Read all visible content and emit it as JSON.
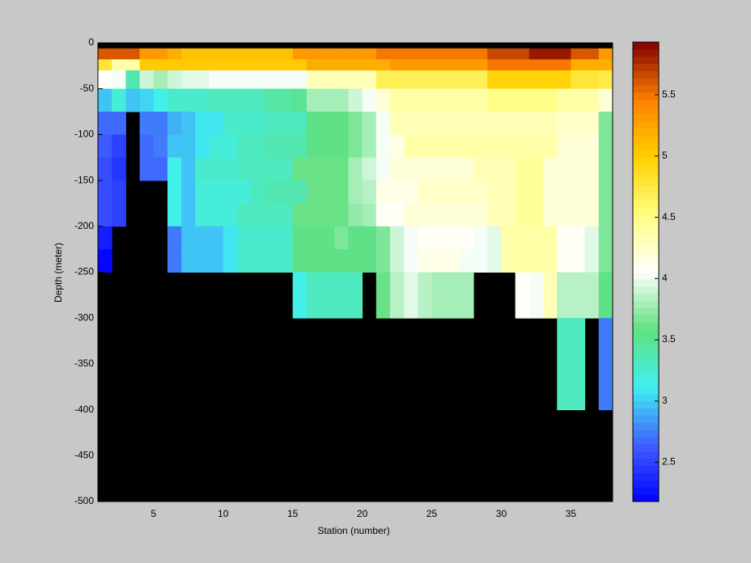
{
  "chart_data": {
    "type": "heatmap",
    "xlabel": "Station (number)",
    "ylabel": "Depth (meter)",
    "xlim": [
      1,
      38
    ],
    "xticks": [
      5,
      10,
      15,
      20,
      25,
      30,
      35
    ],
    "ylim": [
      -500,
      0
    ],
    "yticks": [
      0,
      -50,
      -100,
      -150,
      -200,
      -250,
      -300,
      -350,
      -400,
      -450,
      -500
    ],
    "x_edges": [
      1,
      2,
      3,
      4,
      5,
      6,
      7,
      8,
      9,
      10,
      11,
      12,
      13,
      14,
      15,
      16,
      17,
      18,
      19,
      20,
      21,
      22,
      23,
      24,
      25,
      26,
      27,
      28,
      29,
      30,
      31,
      32,
      33,
      34,
      35,
      36,
      37,
      38
    ],
    "y_edges": [
      -6,
      -18,
      -30,
      -50,
      -75,
      -100,
      -125,
      -150,
      -175,
      -200,
      -225,
      -250,
      -300,
      -400
    ],
    "clim": [
      2.18,
      5.93
    ],
    "cticks": [
      2.5,
      3,
      3.5,
      4,
      4.5,
      5,
      5.5
    ],
    "colormap": [
      "#0000ff",
      "#4060ff",
      "#40f0f0",
      "#60e080",
      "#ffffff",
      "#ffff80",
      "#ffd000",
      "#ff8000",
      "#800000"
    ],
    "background": "#000000",
    "values": [
      [
        5.6,
        5.6,
        5.6,
        5.3,
        5.3,
        5.2,
        5.1,
        5.1,
        5.1,
        5.1,
        5.1,
        5.1,
        5.1,
        5.1,
        5.3,
        5.3,
        5.3,
        5.3,
        5.3,
        5.3,
        5.5,
        5.5,
        5.5,
        5.5,
        5.5,
        5.5,
        5.5,
        5.5,
        5.65,
        5.65,
        5.65,
        5.85,
        5.85,
        5.85,
        5.6,
        5.6,
        5.3
      ],
      [
        4.8,
        4.4,
        4.4,
        5.0,
        5.0,
        5.0,
        5.0,
        5.0,
        5.0,
        5.0,
        5.0,
        5.0,
        5.0,
        5.0,
        5.0,
        5.2,
        5.2,
        5.2,
        5.2,
        5.2,
        5.2,
        5.3,
        5.3,
        5.3,
        5.3,
        5.3,
        5.3,
        5.3,
        5.5,
        5.5,
        5.5,
        5.5,
        5.5,
        5.5,
        5.2,
        5.2,
        5.2
      ],
      [
        4.1,
        4.0,
        3.4,
        3.9,
        3.8,
        3.9,
        3.95,
        3.95,
        4.05,
        4.05,
        4.05,
        4.05,
        4.05,
        4.05,
        4.05,
        4.3,
        4.3,
        4.3,
        4.3,
        4.3,
        4.65,
        4.65,
        4.65,
        4.65,
        4.65,
        4.65,
        4.65,
        4.65,
        4.95,
        4.95,
        4.95,
        4.95,
        4.95,
        4.95,
        4.8,
        4.8,
        4.7
      ],
      [
        3.0,
        3.2,
        2.95,
        3.05,
        3.15,
        3.25,
        3.25,
        3.25,
        3.35,
        3.35,
        3.35,
        3.35,
        3.45,
        3.45,
        3.5,
        3.8,
        3.8,
        3.8,
        3.9,
        4.0,
        4.2,
        4.4,
        4.4,
        4.4,
        4.4,
        4.4,
        4.4,
        4.4,
        4.5,
        4.5,
        4.5,
        4.5,
        4.5,
        4.4,
        4.4,
        4.4,
        4.2
      ],
      [
        2.7,
        2.7,
        null,
        2.75,
        2.75,
        2.9,
        3.0,
        3.1,
        3.1,
        3.25,
        3.25,
        3.25,
        3.35,
        3.35,
        3.35,
        3.55,
        3.55,
        3.55,
        3.65,
        3.8,
        4.0,
        4.3,
        4.3,
        4.3,
        4.3,
        4.3,
        4.3,
        4.3,
        4.3,
        4.3,
        4.3,
        4.3,
        4.3,
        4.25,
        4.25,
        4.25,
        3.7
      ],
      [
        2.6,
        2.5,
        null,
        2.65,
        2.75,
        2.95,
        3.0,
        3.1,
        3.2,
        3.2,
        3.3,
        3.3,
        3.4,
        3.4,
        3.4,
        3.55,
        3.55,
        3.55,
        3.7,
        3.8,
        4.0,
        4.15,
        4.35,
        4.35,
        4.35,
        4.35,
        4.35,
        4.35,
        4.35,
        4.35,
        4.35,
        4.35,
        4.35,
        4.2,
        4.2,
        4.2,
        3.7
      ],
      [
        2.55,
        2.45,
        null,
        2.7,
        2.7,
        3.15,
        3.0,
        3.25,
        3.25,
        3.25,
        3.35,
        3.35,
        3.35,
        3.35,
        3.6,
        3.6,
        3.6,
        3.6,
        3.8,
        3.9,
        4.05,
        4.2,
        4.2,
        4.2,
        4.2,
        4.2,
        4.2,
        4.3,
        4.3,
        4.3,
        4.45,
        4.45,
        4.2,
        4.2,
        4.2,
        4.2,
        3.7
      ],
      [
        2.55,
        2.5,
        null,
        null,
        null,
        3.15,
        2.95,
        3.2,
        3.2,
        3.2,
        3.2,
        3.3,
        3.4,
        3.4,
        3.4,
        3.6,
        3.6,
        3.6,
        3.8,
        3.85,
        4.15,
        4.15,
        4.15,
        4.25,
        4.25,
        4.25,
        4.25,
        4.25,
        4.3,
        4.3,
        4.45,
        4.45,
        4.2,
        4.2,
        4.2,
        4.2,
        3.7
      ],
      [
        2.55,
        2.5,
        null,
        null,
        null,
        3.15,
        2.95,
        3.2,
        3.2,
        3.2,
        3.35,
        3.35,
        3.35,
        3.35,
        3.6,
        3.6,
        3.6,
        3.6,
        3.75,
        3.8,
        4.1,
        4.1,
        4.2,
        4.2,
        4.2,
        4.2,
        4.2,
        4.2,
        4.3,
        4.3,
        4.45,
        4.45,
        4.2,
        4.2,
        4.2,
        4.2,
        3.7
      ],
      [
        2.3,
        null,
        null,
        null,
        null,
        2.75,
        2.95,
        2.95,
        2.95,
        3.1,
        3.25,
        3.25,
        3.25,
        3.25,
        3.55,
        3.55,
        3.55,
        3.65,
        3.55,
        3.55,
        3.7,
        3.9,
        4.0,
        4.1,
        4.1,
        4.1,
        4.1,
        4.0,
        3.95,
        4.35,
        4.35,
        4.35,
        4.35,
        4.1,
        4.1,
        3.95,
        3.7
      ],
      [
        2.2,
        null,
        null,
        null,
        null,
        2.75,
        2.95,
        2.95,
        2.95,
        3.1,
        3.25,
        3.25,
        3.25,
        3.25,
        3.55,
        3.55,
        3.55,
        3.55,
        3.55,
        3.55,
        3.7,
        3.9,
        4.0,
        4.15,
        4.15,
        4.15,
        4.0,
        4.0,
        3.95,
        4.35,
        4.35,
        4.35,
        4.35,
        4.1,
        4.1,
        3.95,
        3.7
      ],
      [
        null,
        null,
        null,
        null,
        null,
        null,
        null,
        null,
        null,
        null,
        null,
        null,
        null,
        null,
        3.15,
        3.35,
        3.35,
        3.35,
        3.35,
        null,
        3.6,
        3.85,
        3.95,
        3.85,
        3.8,
        3.8,
        3.8,
        null,
        null,
        null,
        4.1,
        4.0,
        4.3,
        3.85,
        3.85,
        3.85,
        3.55
      ],
      [
        null,
        null,
        null,
        null,
        null,
        null,
        null,
        null,
        null,
        null,
        null,
        null,
        null,
        null,
        null,
        null,
        null,
        null,
        null,
        null,
        null,
        null,
        null,
        null,
        null,
        null,
        null,
        null,
        null,
        null,
        null,
        null,
        null,
        3.35,
        3.35,
        null,
        2.75
      ]
    ]
  }
}
